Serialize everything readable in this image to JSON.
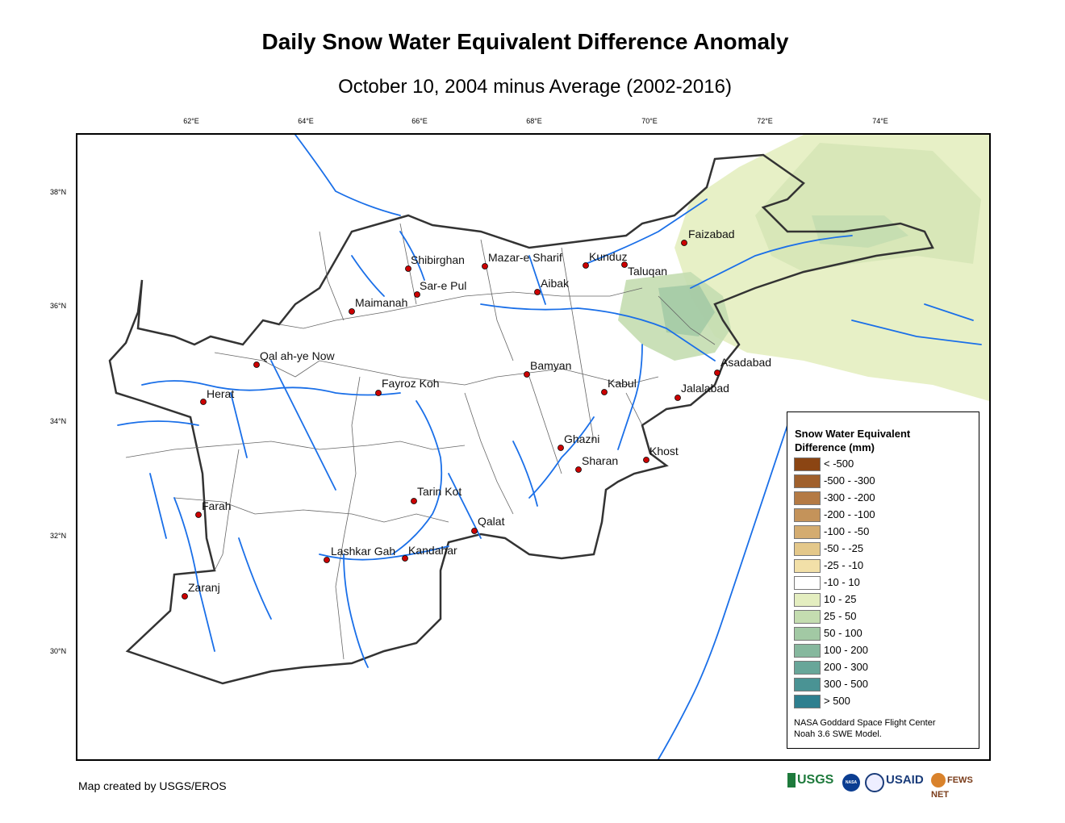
{
  "title": "Daily Snow Water Equivalent Difference Anomaly",
  "subtitle": "October 10, 2004 minus Average (2002-2016)",
  "longitude_labels": [
    "62°E",
    "64°E",
    "66°E",
    "68°E",
    "70°E",
    "72°E",
    "74°E"
  ],
  "latitude_labels": [
    "38°N",
    "36°N",
    "34°N",
    "32°N",
    "30°N"
  ],
  "cities": [
    {
      "name": "Faizabad"
    },
    {
      "name": "Shibirghan"
    },
    {
      "name": "Mazar-e Sharif"
    },
    {
      "name": "Kunduz"
    },
    {
      "name": "Taluqan"
    },
    {
      "name": "Sar-e Pul"
    },
    {
      "name": "Aibak"
    },
    {
      "name": "Maimanah"
    },
    {
      "name": "Qal ah-ye Now"
    },
    {
      "name": "Bamyan"
    },
    {
      "name": "Asadabad"
    },
    {
      "name": "Kabul"
    },
    {
      "name": "Fayroz Koh"
    },
    {
      "name": "Jalalabad"
    },
    {
      "name": "Herat"
    },
    {
      "name": "Ghazni"
    },
    {
      "name": "Khost"
    },
    {
      "name": "Sharan"
    },
    {
      "name": "Tarin Kot"
    },
    {
      "name": "Farah"
    },
    {
      "name": "Qalat"
    },
    {
      "name": "Lashkar Gah"
    },
    {
      "name": "Kandahar"
    },
    {
      "name": "Zaranj"
    }
  ],
  "legend": {
    "title_line1": "Snow Water Equivalent",
    "title_line2": "Difference (mm)",
    "items": [
      {
        "label": "< -500",
        "color": "#8b4513"
      },
      {
        "label": "-500 - -300",
        "color": "#a0602c"
      },
      {
        "label": "-300 - -200",
        "color": "#b47a44"
      },
      {
        "label": "-200 - -100",
        "color": "#c4935a"
      },
      {
        "label": "-100 - -50",
        "color": "#d4ac70"
      },
      {
        "label": "-50 - -25",
        "color": "#e4c88a"
      },
      {
        "label": "-25 - -10",
        "color": "#f2e0a8"
      },
      {
        "label": "-10 - 10",
        "color": "#ffffff"
      },
      {
        "label": "10 - 25",
        "color": "#e4eec0"
      },
      {
        "label": "25 - 50",
        "color": "#c4ddb0"
      },
      {
        "label": "50 - 100",
        "color": "#a2c9a4"
      },
      {
        "label": "100 - 200",
        "color": "#86b89e"
      },
      {
        "label": "200 - 300",
        "color": "#68a699"
      },
      {
        "label": "300 - 500",
        "color": "#4a9394"
      },
      {
        "label": "> 500",
        "color": "#2e7f8f"
      }
    ],
    "credit_line1": "NASA Goddard Space Flight Center",
    "credit_line2": "Noah 3.6 SWE Model."
  },
  "footer_credit": "Map created by USGS/EROS",
  "logos": {
    "usgs": "USGS",
    "nasa": "NASA",
    "usaid": "USAID",
    "fewsnet": "FEWS NET"
  },
  "colors": {
    "river": "#1a6fe8",
    "border": "#333333",
    "city_marker": "#cc0000"
  }
}
